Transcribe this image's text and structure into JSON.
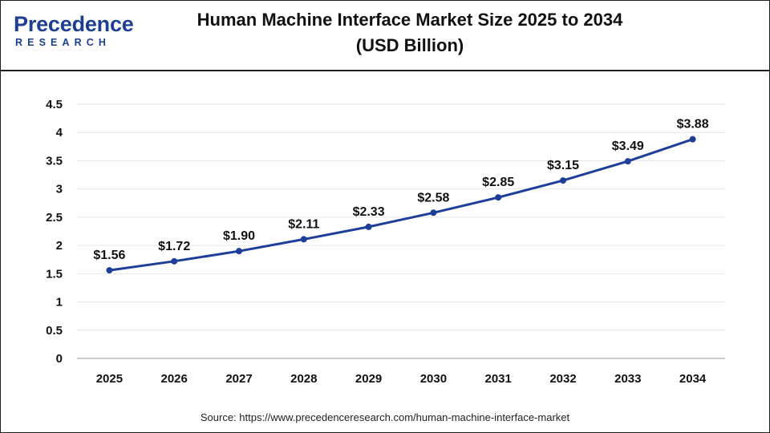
{
  "logo": {
    "word": "recedence",
    "letter": "P",
    "sub": "RESEARCH"
  },
  "colors": {
    "line": "#1d3f9a",
    "brand": "#1d3f8f",
    "grid": "#e6e6e6",
    "axis": "#999999"
  },
  "chart_data": {
    "type": "line",
    "title_line1": "Human Machine Interface Market Size 2025 to 2034",
    "title_line2": "(USD Billion)",
    "categories": [
      "2025",
      "2026",
      "2027",
      "2028",
      "2029",
      "2030",
      "2031",
      "2032",
      "2033",
      "2034"
    ],
    "values": [
      1.56,
      1.72,
      1.9,
      2.11,
      2.33,
      2.58,
      2.85,
      3.15,
      3.49,
      3.88
    ],
    "data_labels": [
      "$1.56",
      "$1.72",
      "$1.90",
      "$2.11",
      "$2.33",
      "$2.58",
      "$2.85",
      "$3.15",
      "$3.49",
      "$3.88"
    ],
    "y_ticks": [
      "0",
      "0.5",
      "1",
      "1.5",
      "2",
      "2.5",
      "3",
      "3.5",
      "4",
      "4.5"
    ],
    "ylim": [
      0,
      4.5
    ],
    "xlabel": "",
    "ylabel": "",
    "grid": true
  },
  "source": "Source: https://www.precedenceresearch.com/human-machine-interface-market"
}
